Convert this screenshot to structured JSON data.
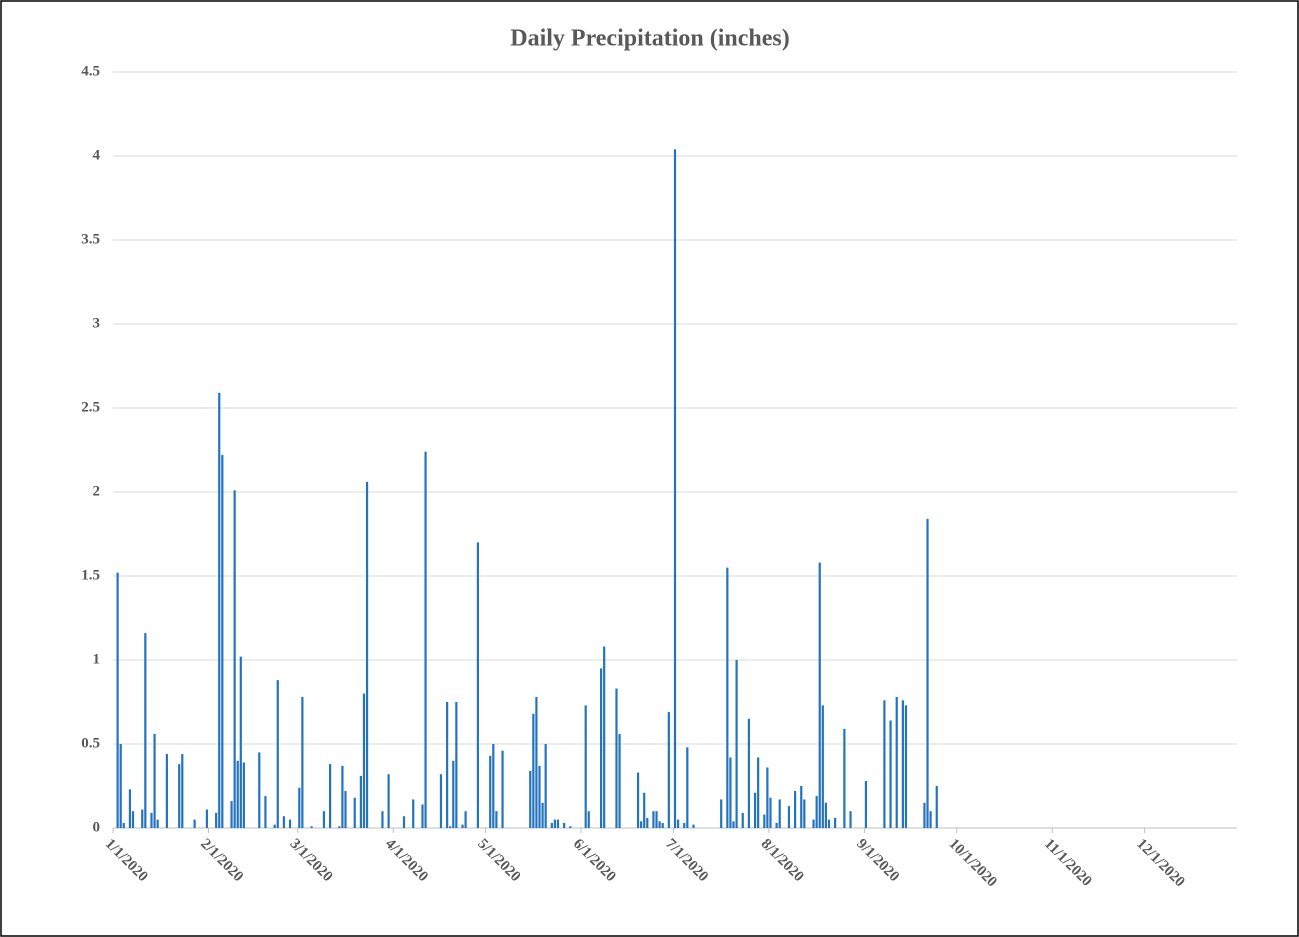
{
  "chart_data": {
    "type": "bar",
    "title": "Daily Precipitation (inches)",
    "color": "#2373be",
    "grid": true,
    "ylim": [
      0,
      4.5
    ],
    "yticks": [
      0,
      0.5,
      1,
      1.5,
      2,
      2.5,
      3,
      3.5,
      4,
      4.5
    ],
    "xlim": [
      "2020-01-01",
      "2020-12-31"
    ],
    "xticks": [
      {
        "value": "2020-01-01",
        "label": "1/1/2020"
      },
      {
        "value": "2020-02-01",
        "label": "2/1/2020"
      },
      {
        "value": "2020-03-01",
        "label": "3/1/2020"
      },
      {
        "value": "2020-04-01",
        "label": "4/1/2020"
      },
      {
        "value": "2020-05-01",
        "label": "5/1/2020"
      },
      {
        "value": "2020-06-01",
        "label": "6/1/2020"
      },
      {
        "value": "2020-07-01",
        "label": "7/1/2020"
      },
      {
        "value": "2020-08-01",
        "label": "8/1/2020"
      },
      {
        "value": "2020-09-01",
        "label": "9/1/2020"
      },
      {
        "value": "2020-10-01",
        "label": "10/1/2020"
      },
      {
        "value": "2020-11-01",
        "label": "11/1/2020"
      },
      {
        "value": "2020-12-01",
        "label": "12/1/2020"
      }
    ],
    "x": [
      "2020-01-02",
      "2020-01-03",
      "2020-01-04",
      "2020-01-06",
      "2020-01-07",
      "2020-01-10",
      "2020-01-11",
      "2020-01-13",
      "2020-01-14",
      "2020-01-15",
      "2020-01-18",
      "2020-01-22",
      "2020-01-23",
      "2020-01-27",
      "2020-01-31",
      "2020-02-03",
      "2020-02-04",
      "2020-02-05",
      "2020-02-08",
      "2020-02-09",
      "2020-02-10",
      "2020-02-11",
      "2020-02-12",
      "2020-02-17",
      "2020-02-19",
      "2020-02-22",
      "2020-02-23",
      "2020-02-25",
      "2020-02-27",
      "2020-03-01",
      "2020-03-02",
      "2020-03-05",
      "2020-03-09",
      "2020-03-11",
      "2020-03-14",
      "2020-03-15",
      "2020-03-16",
      "2020-03-19",
      "2020-03-21",
      "2020-03-22",
      "2020-03-23",
      "2020-03-28",
      "2020-03-30",
      "2020-04-04",
      "2020-04-07",
      "2020-04-10",
      "2020-04-11",
      "2020-04-16",
      "2020-04-18",
      "2020-04-19",
      "2020-04-20",
      "2020-04-21",
      "2020-04-23",
      "2020-04-24",
      "2020-04-28",
      "2020-05-02",
      "2020-05-03",
      "2020-05-04",
      "2020-05-06",
      "2020-05-15",
      "2020-05-16",
      "2020-05-17",
      "2020-05-18",
      "2020-05-19",
      "2020-05-20",
      "2020-05-22",
      "2020-05-23",
      "2020-05-24",
      "2020-05-26",
      "2020-05-28",
      "2020-06-02",
      "2020-06-03",
      "2020-06-07",
      "2020-06-08",
      "2020-06-12",
      "2020-06-13",
      "2020-06-19",
      "2020-06-20",
      "2020-06-21",
      "2020-06-22",
      "2020-06-24",
      "2020-06-25",
      "2020-06-26",
      "2020-06-27",
      "2020-06-29",
      "2020-07-01",
      "2020-07-02",
      "2020-07-04",
      "2020-07-05",
      "2020-07-07",
      "2020-07-16",
      "2020-07-18",
      "2020-07-19",
      "2020-07-20",
      "2020-07-21",
      "2020-07-23",
      "2020-07-25",
      "2020-07-27",
      "2020-07-28",
      "2020-07-30",
      "2020-07-31",
      "2020-08-01",
      "2020-08-03",
      "2020-08-04",
      "2020-08-07",
      "2020-08-09",
      "2020-08-11",
      "2020-08-12",
      "2020-08-15",
      "2020-08-16",
      "2020-08-17",
      "2020-08-18",
      "2020-08-19",
      "2020-08-20",
      "2020-08-22",
      "2020-08-25",
      "2020-08-27",
      "2020-09-01",
      "2020-09-07",
      "2020-09-09",
      "2020-09-11",
      "2020-09-13",
      "2020-09-14",
      "2020-09-20",
      "2020-09-21",
      "2020-09-22",
      "2020-09-24"
    ],
    "values": [
      1.52,
      0.5,
      0.03,
      0.23,
      0.1,
      0.11,
      1.16,
      0.09,
      0.56,
      0.05,
      0.44,
      0.38,
      0.44,
      0.05,
      0.11,
      0.09,
      2.59,
      2.22,
      0.16,
      2.01,
      0.4,
      1.02,
      0.39,
      0.45,
      0.19,
      0.02,
      0.88,
      0.07,
      0.05,
      0.24,
      0.78,
      0.01,
      0.1,
      0.38,
      0.01,
      0.37,
      0.22,
      0.18,
      0.31,
      0.8,
      2.06,
      0.1,
      0.32,
      0.07,
      0.17,
      0.14,
      2.24,
      0.32,
      0.75,
      0.01,
      0.4,
      0.75,
      0.02,
      0.1,
      1.7,
      0.43,
      0.5,
      0.1,
      0.46,
      0.34,
      0.68,
      0.78,
      0.37,
      0.15,
      0.5,
      0.03,
      0.05,
      0.05,
      0.03,
      0.01,
      0.73,
      0.1,
      0.95,
      1.08,
      0.83,
      0.56,
      0.33,
      0.04,
      0.21,
      0.06,
      0.1,
      0.1,
      0.04,
      0.03,
      0.69,
      4.04,
      0.05,
      0.03,
      0.48,
      0.02,
      0.17,
      1.55,
      0.42,
      0.04,
      1.0,
      0.09,
      0.65,
      0.21,
      0.42,
      0.08,
      0.36,
      0.18,
      0.03,
      0.17,
      0.13,
      0.22,
      0.25,
      0.17,
      0.05,
      0.19,
      1.58,
      0.73,
      0.15,
      0.05,
      0.06,
      0.59,
      0.1,
      0.28,
      0.76,
      0.64,
      0.78,
      0.76,
      0.73,
      0.15,
      1.84,
      0.1,
      0.25
    ]
  }
}
